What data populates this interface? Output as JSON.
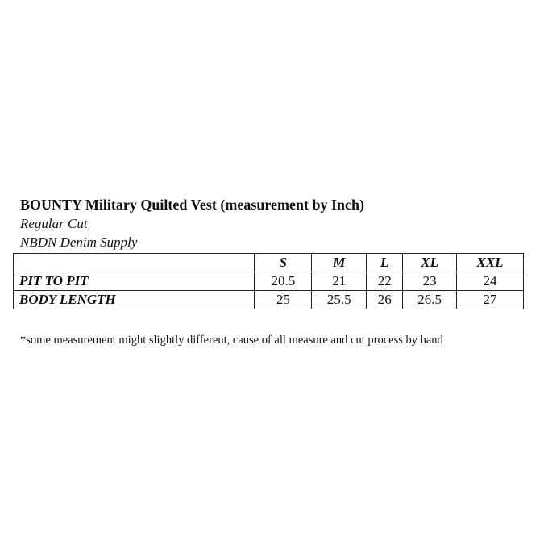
{
  "document": {
    "title": "BOUNTY Military Quilted Vest (measurement by Inch)",
    "subtitle_1": "Regular Cut",
    "subtitle_2": "NBDN Denim Supply",
    "table": {
      "headers": [
        "",
        "S",
        "M",
        "L",
        "XL",
        "XXL"
      ],
      "rows": [
        {
          "label": "PIT TO PIT",
          "values": [
            "20.5",
            "21",
            "22",
            "23",
            "24"
          ]
        },
        {
          "label": "BODY LENGTH",
          "values": [
            "25",
            "25.5",
            "26",
            "26.5",
            "27"
          ]
        }
      ]
    },
    "note": "*some measurement might slightly different, cause of all measure and cut process by hand"
  }
}
